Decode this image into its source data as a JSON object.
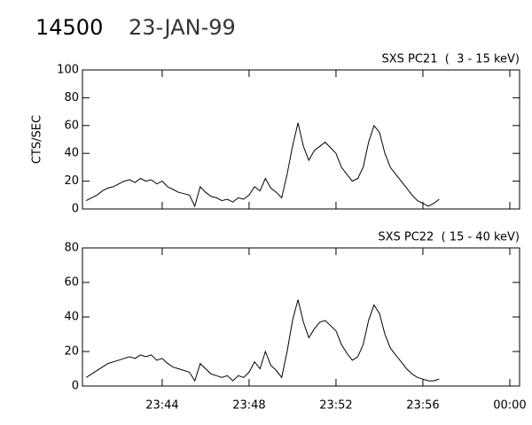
{
  "header": {
    "title": "14500",
    "subtitle": "23-JAN-99"
  },
  "chart_data": [
    {
      "type": "line",
      "title": "SXS PC21  (  3 - 15 keV)",
      "ylabel": "CTS/SEC",
      "color": "#000000",
      "x": [
        40.5,
        40.75,
        41,
        41.25,
        41.5,
        41.75,
        42,
        42.25,
        42.5,
        42.75,
        43,
        43.25,
        43.5,
        43.75,
        44,
        44.25,
        44.5,
        44.75,
        45,
        45.25,
        45.5,
        45.75,
        46,
        46.25,
        46.5,
        46.75,
        47,
        47.25,
        47.5,
        47.75,
        48,
        48.25,
        48.5,
        48.75,
        49,
        49.25,
        49.5,
        49.75,
        50,
        50.25,
        50.5,
        50.75,
        51,
        51.25,
        51.5,
        51.75,
        52,
        52.25,
        52.5,
        52.75,
        53,
        53.25,
        53.5,
        53.75,
        54,
        54.25,
        54.5,
        54.75,
        55,
        55.25,
        55.5,
        55.75,
        56,
        56.25,
        56.5,
        56.75
      ],
      "values": [
        6,
        8,
        10,
        13,
        15,
        16,
        18,
        20,
        21,
        19,
        22,
        20,
        21,
        18,
        20,
        16,
        14,
        12,
        11,
        10,
        2,
        16,
        12,
        9,
        8,
        6,
        7,
        5,
        8,
        7,
        10,
        16,
        13,
        22,
        15,
        12,
        8,
        25,
        45,
        62,
        45,
        35,
        42,
        45,
        48,
        44,
        40,
        30,
        25,
        20,
        22,
        30,
        48,
        60,
        55,
        40,
        30,
        25,
        20,
        15,
        10,
        6,
        4,
        2,
        4,
        7
      ],
      "xlim": [
        40.33,
        60.45
      ],
      "ylim": [
        0,
        100
      ],
      "yticks": [
        0,
        20,
        40,
        60,
        80,
        100
      ]
    },
    {
      "type": "line",
      "title": "SXS PC22  ( 15 - 40 keV)",
      "color": "#000000",
      "x": [
        40.5,
        40.75,
        41,
        41.25,
        41.5,
        41.75,
        42,
        42.25,
        42.5,
        42.75,
        43,
        43.25,
        43.5,
        43.75,
        44,
        44.25,
        44.5,
        44.75,
        45,
        45.25,
        45.5,
        45.75,
        46,
        46.25,
        46.5,
        46.75,
        47,
        47.25,
        47.5,
        47.75,
        48,
        48.25,
        48.5,
        48.75,
        49,
        49.25,
        49.5,
        49.75,
        50,
        50.25,
        50.5,
        50.75,
        51,
        51.25,
        51.5,
        51.75,
        52,
        52.25,
        52.5,
        52.75,
        53,
        53.25,
        53.5,
        53.75,
        54,
        54.25,
        54.5,
        54.75,
        55,
        55.25,
        55.5,
        55.75,
        56,
        56.25,
        56.5,
        56.75
      ],
      "values": [
        5,
        7,
        9,
        11,
        13,
        14,
        15,
        16,
        17,
        16,
        18,
        17,
        18,
        15,
        16,
        13,
        11,
        10,
        9,
        8,
        3,
        13,
        10,
        7,
        6,
        5,
        6,
        3,
        6,
        5,
        8,
        14,
        10,
        20,
        12,
        9,
        5,
        20,
        38,
        50,
        37,
        28,
        33,
        37,
        38,
        35,
        32,
        24,
        19,
        15,
        17,
        24,
        38,
        47,
        42,
        30,
        22,
        18,
        14,
        10,
        7,
        5,
        4,
        3,
        3,
        4
      ],
      "xlim": [
        40.33,
        60.45
      ],
      "ylim": [
        0,
        80
      ],
      "yticks": [
        0,
        20,
        40,
        60,
        80
      ],
      "xticks": [
        {
          "value": 44,
          "label": "23:44"
        },
        {
          "value": 48,
          "label": "23:48"
        },
        {
          "value": 52,
          "label": "23:52"
        },
        {
          "value": 56,
          "label": "23:56"
        },
        {
          "value": 60,
          "label": "00:00"
        }
      ]
    }
  ]
}
